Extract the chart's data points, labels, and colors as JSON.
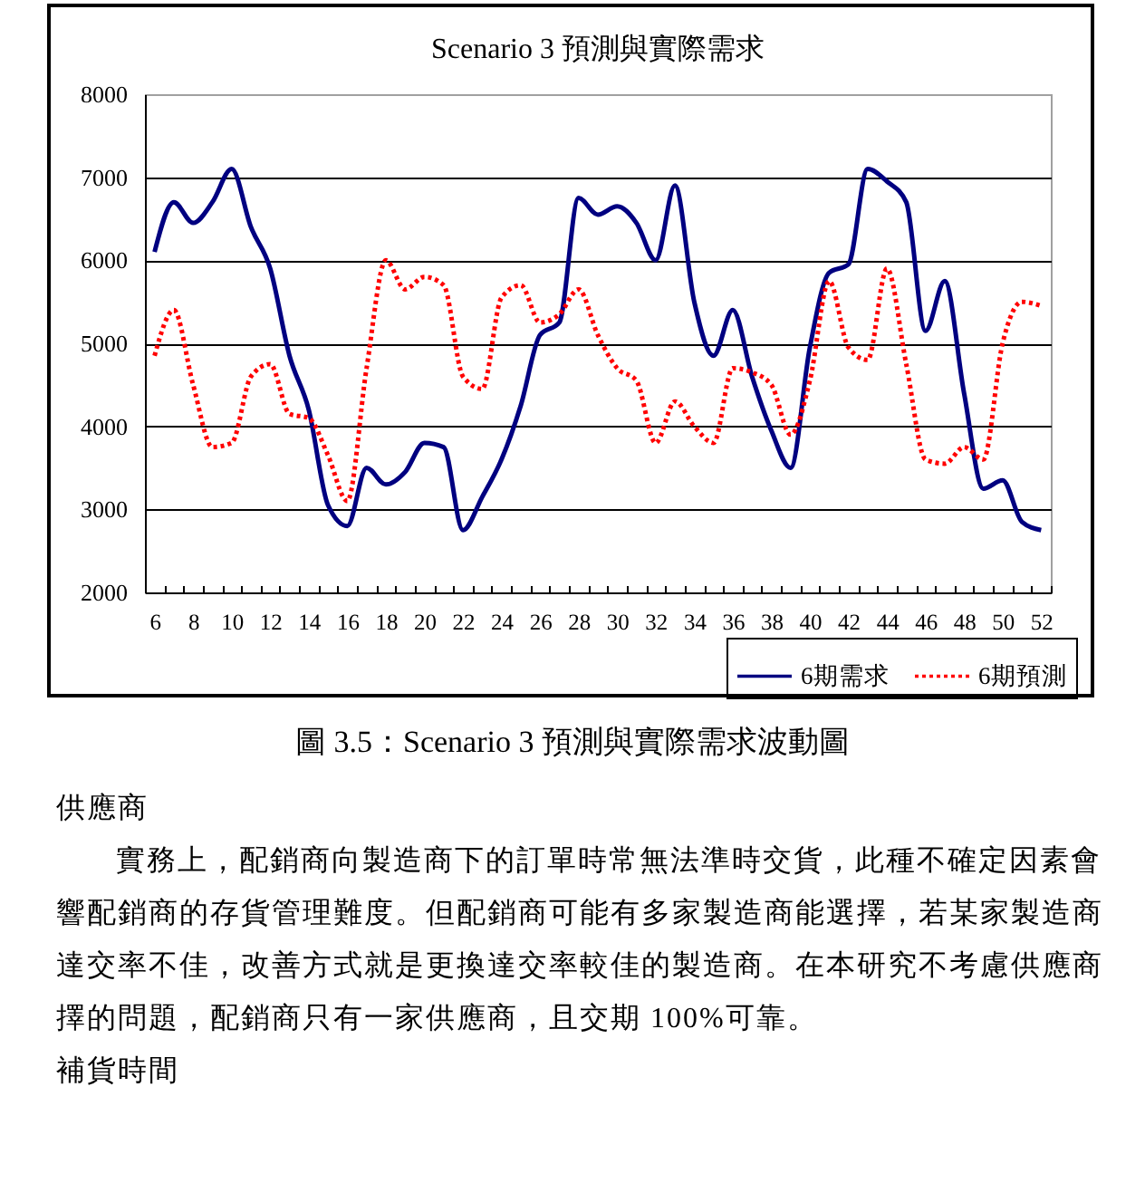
{
  "chart_data": {
    "type": "line",
    "title": "Scenario 3 預測與實際需求",
    "categories": [
      "6",
      null,
      "8",
      null,
      "10",
      null,
      "12",
      null,
      "14",
      null,
      "16",
      null,
      "18",
      null,
      "20",
      null,
      "22",
      null,
      "24",
      null,
      "26",
      null,
      "28",
      null,
      "30",
      null,
      "32",
      null,
      "34",
      null,
      "36",
      null,
      "38",
      null,
      "40",
      null,
      "42",
      null,
      "44",
      null,
      "46",
      null,
      "48",
      null,
      "50",
      null,
      "52"
    ],
    "series": [
      {
        "name": "6期需求",
        "color": "#000080",
        "line_style": "solid",
        "values": [
          6100,
          6700,
          6450,
          6700,
          7100,
          6400,
          5900,
          4850,
          4200,
          3050,
          2800,
          3500,
          3300,
          3450,
          3800,
          3750,
          2750,
          3150,
          3600,
          4250,
          5100,
          5250,
          6750,
          6550,
          6650,
          6450,
          6000,
          6900,
          5500,
          4850,
          5400,
          4600,
          3950,
          3500,
          4950,
          5850,
          5950,
          7100,
          6950,
          6700,
          5150,
          5750,
          4400,
          3250,
          3350,
          2850,
          2750
        ]
      },
      {
        "name": "6期預測",
        "color": "#ff0000",
        "line_style": "dotted",
        "values": [
          4850,
          5400,
          4500,
          3750,
          3800,
          4600,
          4750,
          4150,
          4100,
          3650,
          3100,
          4700,
          6000,
          5650,
          5800,
          5700,
          4600,
          4450,
          5550,
          5700,
          5250,
          5350,
          5650,
          5100,
          4700,
          4550,
          3800,
          4300,
          4000,
          3800,
          4700,
          4650,
          4500,
          3900,
          4550,
          5750,
          4950,
          4800,
          5900,
          4750,
          3600,
          3550,
          3750,
          3600,
          5000,
          5500,
          5450
        ]
      }
    ],
    "ylim": [
      2000,
      8000
    ],
    "yticks": [
      2000,
      3000,
      4000,
      5000,
      6000,
      7000,
      8000
    ],
    "grid": "y",
    "legend": "bottom right",
    "annotations": [
      "圖 3.5：Scenario 3 預測與實際需求波動圖",
      "供應商",
      "實務上，配銷商向製造商下的訂單時常無法準時交貨，此種不確定因素會",
      "響配銷商的存貨管理難度。但配銷商可能有多家製造商能選擇，若某家製造商",
      "達交率不佳，改善方式就是更換達交率較佳的製造商。在本研究不考慮供應商",
      "擇的問題，配銷商只有一家供應商，且交期 100%可靠。",
      "補貨時間"
    ]
  }
}
